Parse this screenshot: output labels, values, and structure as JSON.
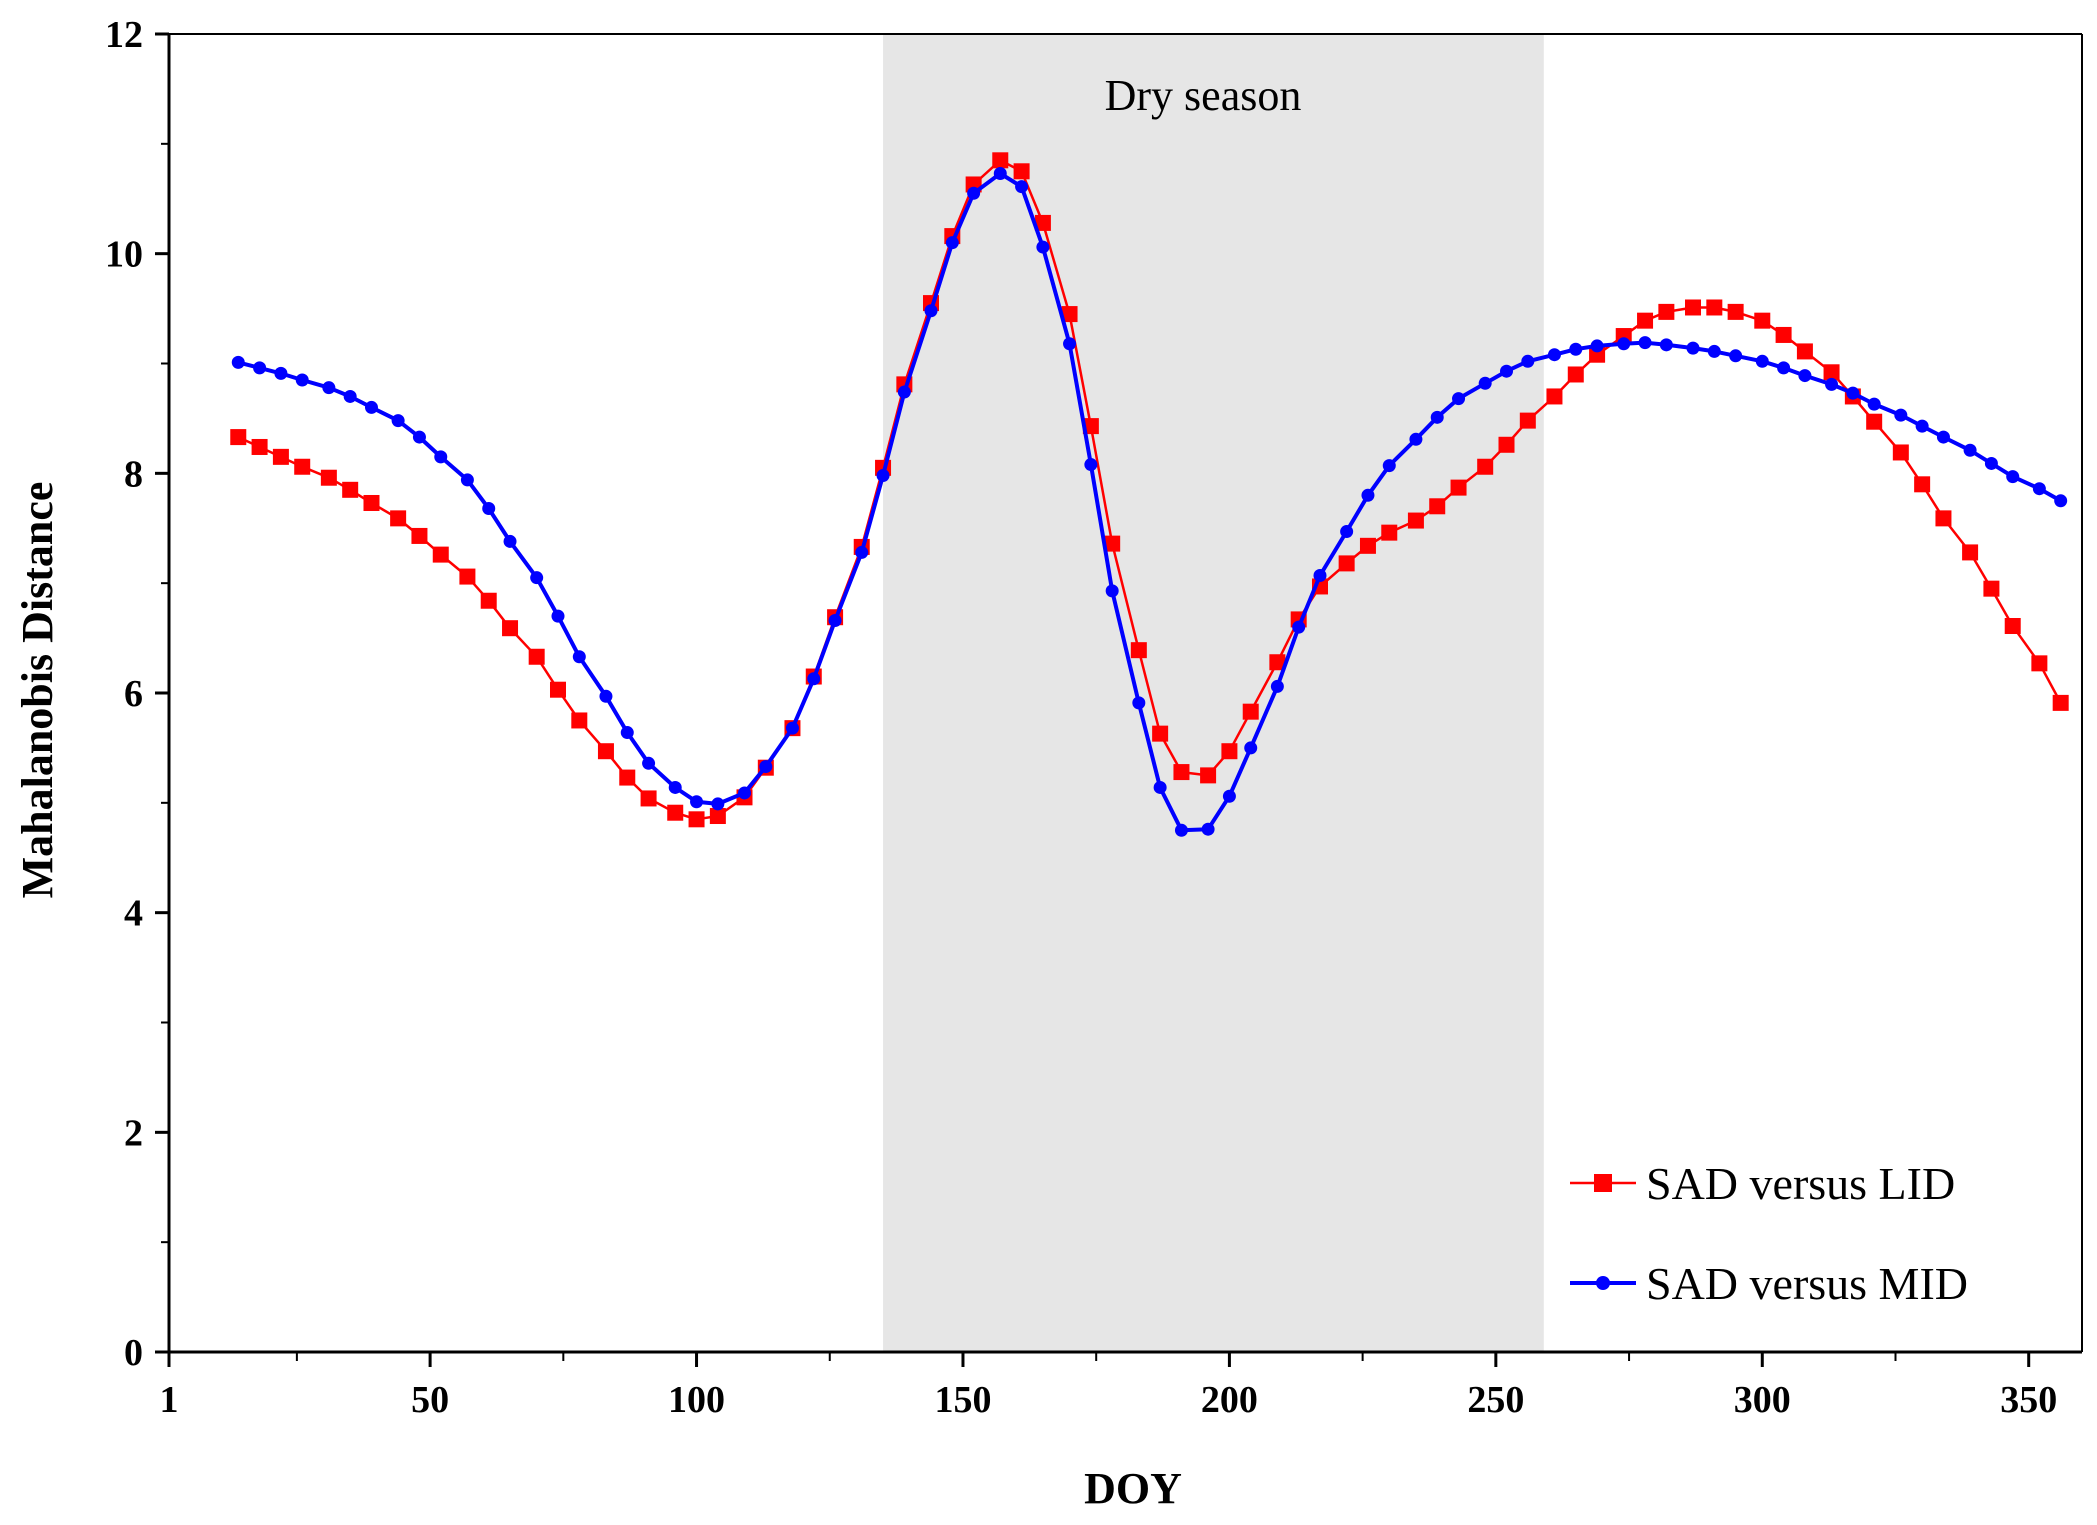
{
  "chart_data": {
    "type": "line",
    "title": "",
    "xlabel": "DOY",
    "ylabel": "Mahalanobis Distance",
    "xlim": [
      1,
      360
    ],
    "ylim": [
      0,
      12
    ],
    "x_ticks": [
      1,
      50,
      100,
      150,
      200,
      250,
      300,
      350
    ],
    "y_ticks": [
      0,
      2,
      4,
      6,
      8,
      10,
      12
    ],
    "grid": false,
    "legend_position": "bottom-right",
    "shaded_region": {
      "x_start": 135,
      "x_end": 259,
      "label": "Dry season",
      "color": "#e6e6e6"
    },
    "x": [
      14,
      18,
      22,
      26,
      31,
      35,
      39,
      44,
      48,
      52,
      57,
      61,
      65,
      70,
      74,
      78,
      83,
      87,
      91,
      96,
      100,
      104,
      109,
      113,
      118,
      122,
      126,
      131,
      135,
      139,
      144,
      148,
      152,
      157,
      161,
      165,
      170,
      174,
      178,
      183,
      187,
      191,
      196,
      200,
      204,
      209,
      213,
      217,
      222,
      226,
      230,
      235,
      239,
      243,
      248,
      252,
      256,
      261,
      265,
      269,
      274,
      278,
      282,
      287,
      291,
      295,
      300,
      304,
      308,
      313,
      317,
      321,
      326,
      330,
      334,
      339,
      343,
      347,
      352,
      356
    ],
    "series": [
      {
        "name": "SAD versus LID",
        "color": "#ff0000",
        "marker": "square",
        "values": [
          8.33,
          8.24,
          8.15,
          8.06,
          7.96,
          7.85,
          7.73,
          7.59,
          7.43,
          7.26,
          7.06,
          6.84,
          6.59,
          6.33,
          6.03,
          5.75,
          5.47,
          5.23,
          5.04,
          4.91,
          4.85,
          4.88,
          5.05,
          5.32,
          5.68,
          6.15,
          6.69,
          7.33,
          8.05,
          8.81,
          9.55,
          10.16,
          10.63,
          10.85,
          10.75,
          10.28,
          9.45,
          8.43,
          7.36,
          6.39,
          5.63,
          5.28,
          5.25,
          5.47,
          5.83,
          6.28,
          6.67,
          6.97,
          7.18,
          7.34,
          7.46,
          7.57,
          7.7,
          7.87,
          8.06,
          8.26,
          8.48,
          8.7,
          8.9,
          9.08,
          9.25,
          9.39,
          9.47,
          9.51,
          9.51,
          9.47,
          9.39,
          9.26,
          9.11,
          8.92,
          8.7,
          8.47,
          8.19,
          7.9,
          7.59,
          7.28,
          6.95,
          6.61,
          6.27,
          5.91
        ]
      },
      {
        "name": "SAD versus MID",
        "color": "#0000ff",
        "marker": "circle",
        "values": [
          9.01,
          8.96,
          8.91,
          8.85,
          8.78,
          8.7,
          8.6,
          8.48,
          8.33,
          8.15,
          7.94,
          7.68,
          7.38,
          7.05,
          6.7,
          6.33,
          5.97,
          5.64,
          5.36,
          5.14,
          5.01,
          4.99,
          5.09,
          5.33,
          5.68,
          6.13,
          6.66,
          7.28,
          7.98,
          8.74,
          9.48,
          10.1,
          10.55,
          10.73,
          10.61,
          10.06,
          9.18,
          8.08,
          6.93,
          5.91,
          5.14,
          4.75,
          4.76,
          5.06,
          5.5,
          6.06,
          6.6,
          7.07,
          7.47,
          7.8,
          8.07,
          8.31,
          8.51,
          8.68,
          8.82,
          8.93,
          9.02,
          9.08,
          9.13,
          9.16,
          9.18,
          9.19,
          9.17,
          9.14,
          9.11,
          9.07,
          9.02,
          8.96,
          8.89,
          8.81,
          8.73,
          8.63,
          8.53,
          8.43,
          8.33,
          8.21,
          8.09,
          7.97,
          7.86,
          7.75
        ]
      }
    ]
  }
}
